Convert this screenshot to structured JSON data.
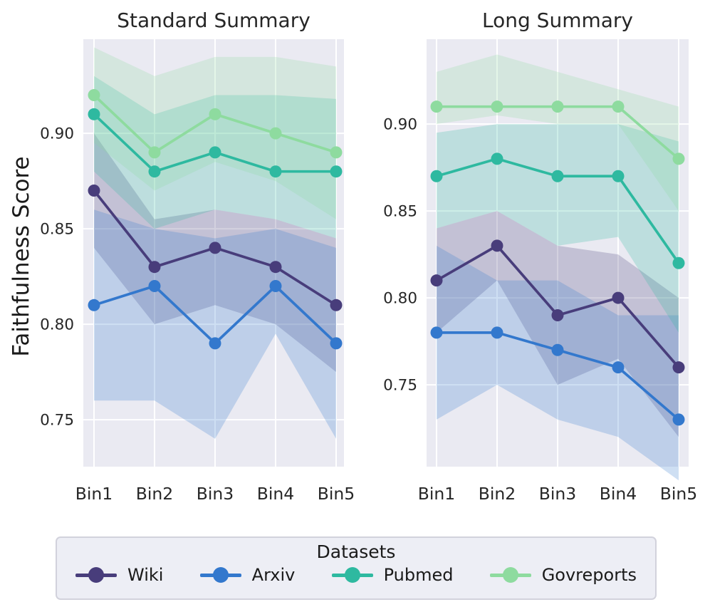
{
  "figure": {
    "ylabel": "Faithfulness Score",
    "background_color": "#ffffff",
    "plot_background_color": "#eaeaf2",
    "grid_color": "#ffffff",
    "text_color": "#262626"
  },
  "legend": {
    "title": "Datasets",
    "entries": [
      {
        "label": "Wiki",
        "color": "#483d7b"
      },
      {
        "label": "Arxiv",
        "color": "#3378cd"
      },
      {
        "label": "Pubmed",
        "color": "#2eb9a0"
      },
      {
        "label": "Govreports",
        "color": "#8edb9f"
      }
    ]
  },
  "chart_data": [
    {
      "type": "line",
      "title": "Standard Summary",
      "xlabel": "",
      "ylabel": "Faithfulness Score",
      "categories": [
        "Bin1",
        "Bin2",
        "Bin3",
        "Bin4",
        "Bin5"
      ],
      "yticks": [
        0.9,
        0.85,
        0.8,
        0.75
      ],
      "ylim": [
        0.7254,
        0.9493
      ],
      "grid": true,
      "band_style": "confidence-interval",
      "series": [
        {
          "name": "Wiki",
          "color": "#483d7b",
          "values": [
            0.87,
            0.83,
            0.84,
            0.83,
            0.81
          ],
          "upper": [
            0.9,
            0.855,
            0.86,
            0.855,
            0.845
          ],
          "lower": [
            0.84,
            0.8,
            0.81,
            0.8,
            0.775
          ]
        },
        {
          "name": "Arxiv",
          "color": "#3378cd",
          "values": [
            0.81,
            0.82,
            0.79,
            0.82,
            0.79
          ],
          "upper": [
            0.86,
            0.85,
            0.845,
            0.85,
            0.84
          ],
          "lower": [
            0.76,
            0.76,
            0.74,
            0.795,
            0.74
          ]
        },
        {
          "name": "Pubmed",
          "color": "#2eb9a0",
          "values": [
            0.91,
            0.88,
            0.89,
            0.88,
            0.88
          ],
          "upper": [
            0.93,
            0.91,
            0.92,
            0.92,
            0.918
          ],
          "lower": [
            0.88,
            0.85,
            0.86,
            0.855,
            0.845
          ]
        },
        {
          "name": "Govreports",
          "color": "#8edb9f",
          "values": [
            0.92,
            0.89,
            0.91,
            0.9,
            0.89
          ],
          "upper": [
            0.945,
            0.93,
            0.94,
            0.94,
            0.935
          ],
          "lower": [
            0.895,
            0.87,
            0.885,
            0.875,
            0.855
          ]
        }
      ]
    },
    {
      "type": "line",
      "title": "Long Summary",
      "xlabel": "",
      "ylabel": "Faithfulness Score",
      "categories": [
        "Bin1",
        "Bin2",
        "Bin3",
        "Bin4",
        "Bin5"
      ],
      "yticks": [
        0.9,
        0.85,
        0.8,
        0.75
      ],
      "ylim": [
        0.7029,
        0.9488
      ],
      "grid": true,
      "band_style": "confidence-interval",
      "series": [
        {
          "name": "Wiki",
          "color": "#483d7b",
          "values": [
            0.81,
            0.83,
            0.79,
            0.8,
            0.76
          ],
          "upper": [
            0.84,
            0.85,
            0.83,
            0.825,
            0.8
          ],
          "lower": [
            0.78,
            0.81,
            0.75,
            0.765,
            0.72
          ]
        },
        {
          "name": "Arxiv",
          "color": "#3378cd",
          "values": [
            0.78,
            0.78,
            0.77,
            0.76,
            0.73
          ],
          "upper": [
            0.83,
            0.81,
            0.81,
            0.79,
            0.79
          ],
          "lower": [
            0.73,
            0.75,
            0.73,
            0.72,
            0.695
          ]
        },
        {
          "name": "Pubmed",
          "color": "#2eb9a0",
          "values": [
            0.87,
            0.88,
            0.87,
            0.87,
            0.82
          ],
          "upper": [
            0.895,
            0.9,
            0.9,
            0.9,
            0.89
          ],
          "lower": [
            0.84,
            0.85,
            0.83,
            0.835,
            0.78
          ]
        },
        {
          "name": "Govreports",
          "color": "#8edb9f",
          "values": [
            0.91,
            0.91,
            0.91,
            0.91,
            0.88
          ],
          "upper": [
            0.93,
            0.94,
            0.93,
            0.92,
            0.91
          ],
          "lower": [
            0.9,
            0.905,
            0.9,
            0.9,
            0.85
          ]
        }
      ]
    }
  ]
}
